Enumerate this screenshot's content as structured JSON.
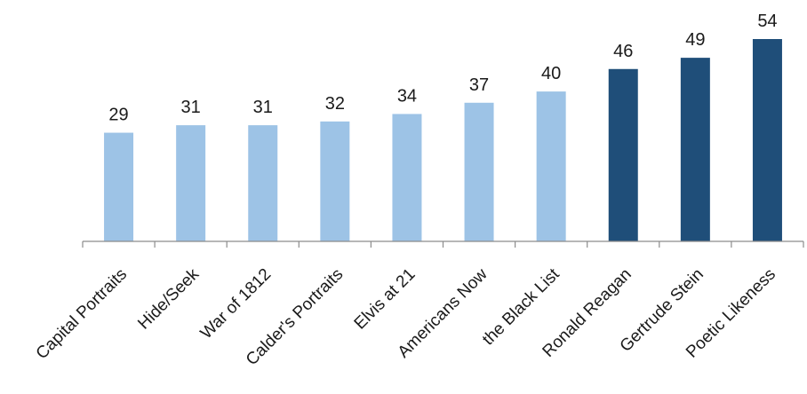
{
  "chart_data": {
    "type": "bar",
    "title": "",
    "xlabel": "",
    "ylabel": "",
    "categories": [
      "Capital Portraits",
      "Hide/Seek",
      "War of 1812",
      "Calder's Portraits",
      "Elvis at 21",
      "Americans Now",
      "the Black List",
      "Ronald Reagan",
      "Gertrude Stein",
      "Poetic Likeness"
    ],
    "values": [
      29,
      31,
      31,
      32,
      34,
      37,
      40,
      46,
      49,
      54
    ],
    "ylim": [
      0,
      54
    ],
    "grid": false,
    "legend": "none",
    "colors": {
      "light_bars": "#9dc3e6",
      "dark_bars": "#1f4e79",
      "axis": "#8c8c8c"
    },
    "bar_color_by_category": [
      "#9dc3e6",
      "#9dc3e6",
      "#9dc3e6",
      "#9dc3e6",
      "#9dc3e6",
      "#9dc3e6",
      "#9dc3e6",
      "#1f4e79",
      "#1f4e79",
      "#1f4e79"
    ]
  }
}
